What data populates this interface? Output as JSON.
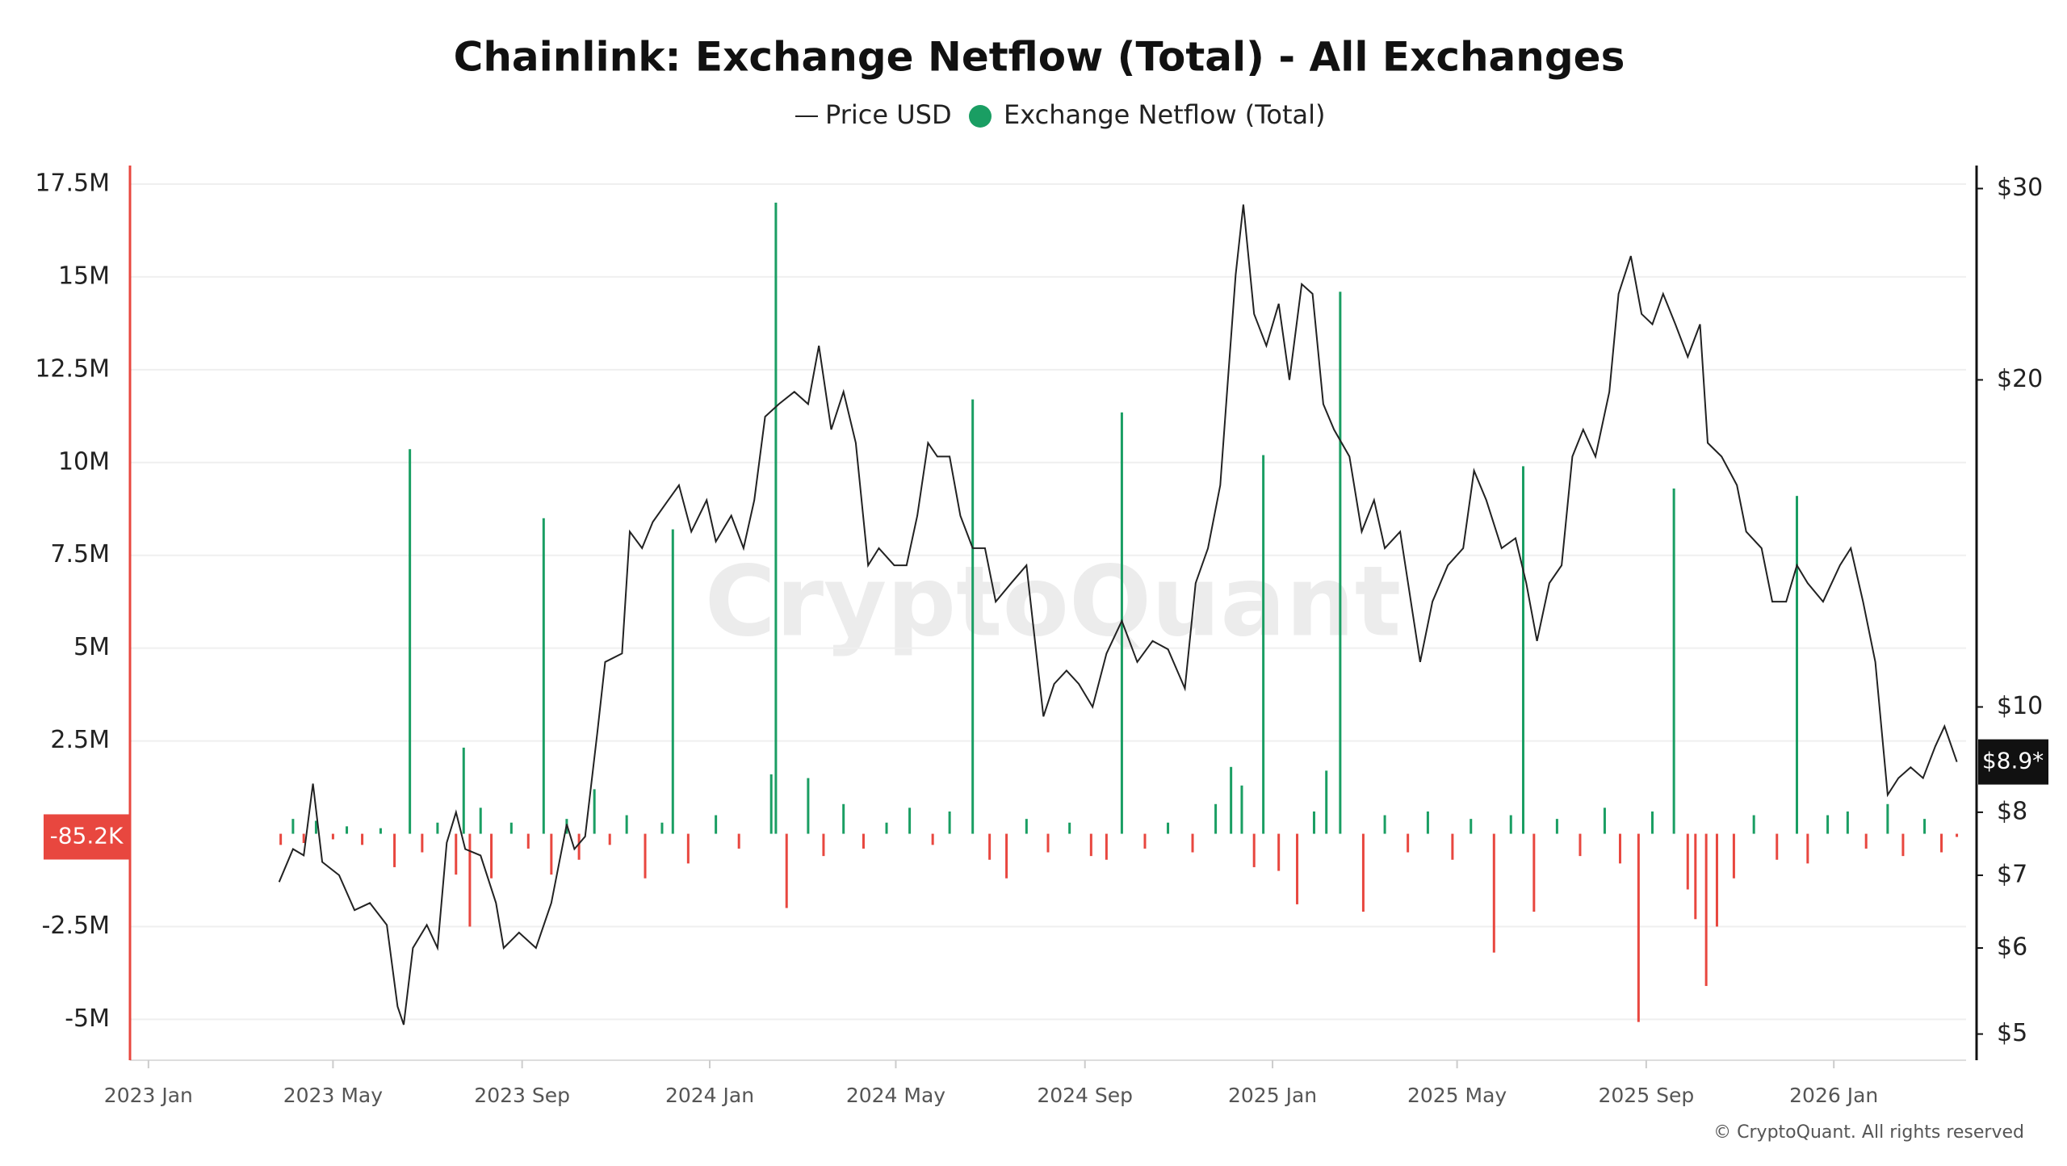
{
  "chart_data": {
    "type": "bar-line",
    "title": "Chainlink: Exchange Netflow (Total) - All Exchanges",
    "watermark": "CryptoQuant",
    "footer": "© CryptoQuant. All rights reserved",
    "xlim": [
      "2022-12-20",
      "2026-03-28"
    ],
    "xticks": [
      {
        "value": "2023-01-01",
        "label": "2023 Jan"
      },
      {
        "value": "2023-05-01",
        "label": "2023 May"
      },
      {
        "value": "2023-09-01",
        "label": "2023 Sep"
      },
      {
        "value": "2024-01-01",
        "label": "2024 Jan"
      },
      {
        "value": "2024-05-01",
        "label": "2024 May"
      },
      {
        "value": "2024-09-01",
        "label": "2024 Sep"
      },
      {
        "value": "2025-01-01",
        "label": "2025 Jan"
      },
      {
        "value": "2025-05-01",
        "label": "2025 May"
      },
      {
        "value": "2025-09-01",
        "label": "2025 Sep"
      },
      {
        "value": "2026-01-01",
        "label": "2026 Jan"
      }
    ],
    "ylim": [
      -6100000,
      18000000
    ],
    "yticks": [
      {
        "value": -5000000,
        "label": "-5M"
      },
      {
        "value": -2500000,
        "label": "-2.5M"
      },
      {
        "value": 2500000,
        "label": "2.5M"
      },
      {
        "value": 5000000,
        "label": "5M"
      },
      {
        "value": 7500000,
        "label": "7.5M"
      },
      {
        "value": 10000000,
        "label": "10M"
      },
      {
        "value": 12500000,
        "label": "12.5M"
      },
      {
        "value": 15000000,
        "label": "15M"
      },
      {
        "value": 17500000,
        "label": "17.5M"
      }
    ],
    "y2lim": [
      4.73,
      31.5
    ],
    "y2scale": "log",
    "y2ticks": [
      {
        "value": 5,
        "label": "$5"
      },
      {
        "value": 6,
        "label": "$6"
      },
      {
        "value": 7,
        "label": "$7"
      },
      {
        "value": 8,
        "label": "$8"
      },
      {
        "value": 10,
        "label": "$10"
      },
      {
        "value": 20,
        "label": "$20"
      },
      {
        "value": 30,
        "label": "$30"
      }
    ],
    "grid": true,
    "series": [
      {
        "name": "Price USD",
        "type": "line",
        "axis": "y2",
        "color": "#222222",
        "last_label": "$8.9*",
        "x": [
          "2023-03-27",
          "2023-04-05",
          "2023-04-12",
          "2023-04-18",
          "2023-04-24",
          "2023-05-05",
          "2023-05-15",
          "2023-05-25",
          "2023-06-05",
          "2023-06-12",
          "2023-06-16",
          "2023-06-22",
          "2023-07-01",
          "2023-07-08",
          "2023-07-14",
          "2023-07-20",
          "2023-07-26",
          "2023-08-05",
          "2023-08-15",
          "2023-08-20",
          "2023-08-30",
          "2023-09-10",
          "2023-09-20",
          "2023-09-30",
          "2023-10-05",
          "2023-10-12",
          "2023-10-20",
          "2023-10-25",
          "2023-11-05",
          "2023-11-10",
          "2023-11-18",
          "2023-11-25",
          "2023-12-05",
          "2023-12-12",
          "2023-12-20",
          "2023-12-30",
          "2024-01-05",
          "2024-01-15",
          "2024-01-23",
          "2024-01-30",
          "2024-02-06",
          "2024-02-15",
          "2024-02-25",
          "2024-03-05",
          "2024-03-12",
          "2024-03-20",
          "2024-03-28",
          "2024-04-05",
          "2024-04-13",
          "2024-04-20",
          "2024-04-30",
          "2024-05-08",
          "2024-05-15",
          "2024-05-22",
          "2024-05-28",
          "2024-06-05",
          "2024-06-12",
          "2024-06-20",
          "2024-06-28",
          "2024-07-05",
          "2024-07-15",
          "2024-07-25",
          "2024-08-05",
          "2024-08-12",
          "2024-08-20",
          "2024-08-28",
          "2024-09-06",
          "2024-09-15",
          "2024-09-25",
          "2024-10-05",
          "2024-10-15",
          "2024-10-25",
          "2024-11-05",
          "2024-11-12",
          "2024-11-20",
          "2024-11-28",
          "2024-12-03",
          "2024-12-08",
          "2024-12-13",
          "2024-12-20",
          "2024-12-28",
          "2025-01-05",
          "2025-01-12",
          "2025-01-20",
          "2025-01-27",
          "2025-02-03",
          "2025-02-10",
          "2025-02-20",
          "2025-02-28",
          "2025-03-08",
          "2025-03-15",
          "2025-03-25",
          "2025-04-07",
          "2025-04-15",
          "2025-04-25",
          "2025-05-05",
          "2025-05-12",
          "2025-05-20",
          "2025-05-30",
          "2025-06-08",
          "2025-06-15",
          "2025-06-22",
          "2025-06-30",
          "2025-07-08",
          "2025-07-15",
          "2025-07-22",
          "2025-07-30",
          "2025-08-08",
          "2025-08-14",
          "2025-08-22",
          "2025-08-29",
          "2025-09-05",
          "2025-09-12",
          "2025-09-20",
          "2025-09-28",
          "2025-10-06",
          "2025-10-11",
          "2025-10-20",
          "2025-10-30",
          "2025-11-05",
          "2025-11-15",
          "2025-11-22",
          "2025-12-01",
          "2025-12-08",
          "2025-12-15",
          "2025-12-25",
          "2026-01-05",
          "2026-01-12",
          "2026-01-20",
          "2026-01-28",
          "2026-02-05",
          "2026-02-12",
          "2026-02-20",
          "2026-02-28",
          "2026-03-08",
          "2026-03-14",
          "2026-03-22"
        ],
        "values": [
          6.9,
          7.4,
          7.3,
          8.5,
          7.2,
          7.0,
          6.5,
          6.6,
          6.3,
          5.3,
          5.1,
          6.0,
          6.3,
          6.0,
          7.5,
          8.0,
          7.4,
          7.3,
          6.6,
          6.0,
          6.2,
          6.0,
          6.6,
          7.8,
          7.4,
          7.6,
          9.5,
          11.0,
          11.2,
          14.5,
          14.0,
          14.8,
          15.5,
          16.0,
          14.5,
          15.5,
          14.2,
          15.0,
          14.0,
          15.5,
          18.5,
          19.0,
          19.5,
          19.0,
          21.5,
          18.0,
          19.5,
          17.5,
          13.5,
          14.0,
          13.5,
          13.5,
          15.0,
          17.5,
          17.0,
          17.0,
          15.0,
          14.0,
          14.0,
          12.5,
          13.0,
          13.5,
          9.8,
          10.5,
          10.8,
          10.5,
          10.0,
          11.2,
          12.0,
          11.0,
          11.5,
          11.3,
          10.4,
          13.0,
          14.0,
          16.0,
          20.0,
          25.0,
          29.0,
          23.0,
          21.5,
          23.5,
          20.0,
          24.5,
          24.0,
          19.0,
          18.0,
          17.0,
          14.5,
          15.5,
          14.0,
          14.5,
          11.0,
          12.5,
          13.5,
          14.0,
          16.5,
          15.5,
          14.0,
          14.3,
          13.0,
          11.5,
          13.0,
          13.5,
          17.0,
          18.0,
          17.0,
          19.5,
          24.0,
          26.0,
          23.0,
          22.5,
          24.0,
          22.5,
          21.0,
          22.5,
          17.5,
          17.0,
          16.0,
          14.5,
          14.0,
          12.5,
          12.5,
          13.5,
          13.0,
          12.5,
          13.5,
          14.0,
          12.5,
          11.0,
          8.3,
          8.6,
          8.8,
          8.6,
          9.2,
          9.6,
          8.9
        ]
      },
      {
        "name": "Exchange Netflow (Total)",
        "type": "bar",
        "color": "#1a9e63",
        "negative_color": "#e8473f",
        "last_label": "-85.2K",
        "x": [
          "2023-03-28",
          "2023-04-05",
          "2023-04-12",
          "2023-04-20",
          "2023-05-01",
          "2023-05-10",
          "2023-05-20",
          "2023-06-01",
          "2023-06-10",
          "2023-06-20",
          "2023-06-28",
          "2023-07-08",
          "2023-07-20",
          "2023-07-25",
          "2023-07-29",
          "2023-08-05",
          "2023-08-12",
          "2023-08-25",
          "2023-09-05",
          "2023-09-15",
          "2023-09-20",
          "2023-09-30",
          "2023-10-08",
          "2023-10-18",
          "2023-10-28",
          "2023-11-08",
          "2023-11-20",
          "2023-12-01",
          "2023-12-08",
          "2023-12-18",
          "2024-01-05",
          "2024-01-20",
          "2024-02-10",
          "2024-02-13",
          "2024-02-20",
          "2024-03-05",
          "2024-03-15",
          "2024-03-28",
          "2024-04-10",
          "2024-04-25",
          "2024-05-10",
          "2024-05-25",
          "2024-06-05",
          "2024-06-20",
          "2024-07-01",
          "2024-07-12",
          "2024-07-25",
          "2024-08-08",
          "2024-08-22",
          "2024-09-05",
          "2024-09-15",
          "2024-09-25",
          "2024-10-10",
          "2024-10-25",
          "2024-11-10",
          "2024-11-25",
          "2024-12-05",
          "2024-12-12",
          "2024-12-20",
          "2024-12-26",
          "2025-01-05",
          "2025-01-17",
          "2025-01-28",
          "2025-02-05",
          "2025-02-14",
          "2025-03-01",
          "2025-03-15",
          "2025-03-30",
          "2025-04-12",
          "2025-04-28",
          "2025-05-10",
          "2025-05-25",
          "2025-06-05",
          "2025-06-13",
          "2025-06-20",
          "2025-07-05",
          "2025-07-20",
          "2025-08-05",
          "2025-08-15",
          "2025-08-27",
          "2025-09-05",
          "2025-09-19",
          "2025-09-28",
          "2025-10-03",
          "2025-10-10",
          "2025-10-17",
          "2025-10-28",
          "2025-11-10",
          "2025-11-25",
          "2025-12-08",
          "2025-12-15",
          "2025-12-28",
          "2026-01-10",
          "2026-01-22",
          "2026-02-05",
          "2026-02-15",
          "2026-03-01",
          "2026-03-12",
          "2026-03-22"
        ],
        "values": [
          -300000,
          400000,
          -250000,
          350000,
          -150000,
          200000,
          -300000,
          150000,
          -900000,
          10360000,
          -500000,
          300000,
          -1100000,
          2320000,
          -2500000,
          700000,
          -1200000,
          300000,
          -400000,
          8500000,
          -1100000,
          400000,
          -700000,
          1200000,
          -300000,
          500000,
          -1200000,
          300000,
          8200000,
          -800000,
          500000,
          -400000,
          1600000,
          17000000,
          -2000000,
          1500000,
          -600000,
          800000,
          -400000,
          300000,
          700000,
          -300000,
          600000,
          11700000,
          -700000,
          -1200000,
          400000,
          -500000,
          300000,
          -600000,
          -700000,
          11350000,
          -400000,
          300000,
          -500000,
          800000,
          1800000,
          1300000,
          -900000,
          10200000,
          -1000000,
          -1900000,
          600000,
          1700000,
          14600000,
          -2100000,
          500000,
          -500000,
          600000,
          -700000,
          400000,
          -3200000,
          500000,
          9900000,
          -2100000,
          400000,
          -600000,
          700000,
          -800000,
          -5070000,
          600000,
          9300000,
          -1500000,
          -2300000,
          -4100000,
          -2500000,
          -1200000,
          500000,
          -700000,
          9100000,
          -800000,
          500000,
          600000,
          -400000,
          800000,
          -600000,
          400000,
          -500000,
          -85200
        ]
      }
    ]
  }
}
